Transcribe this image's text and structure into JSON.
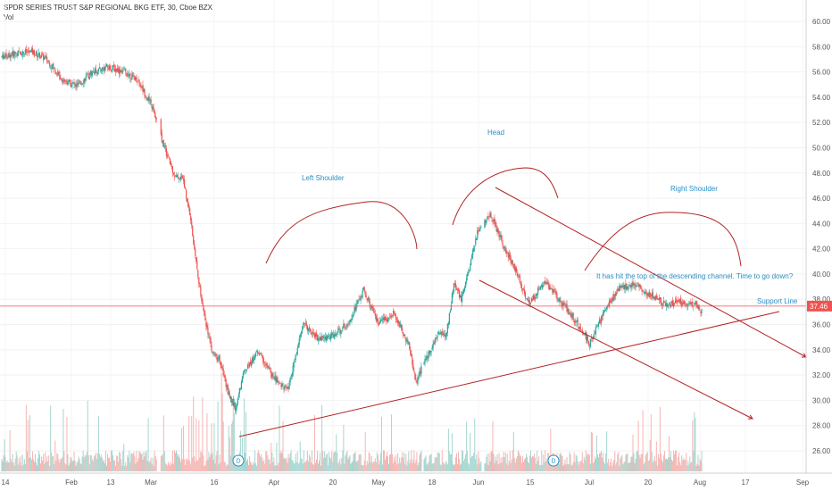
{
  "header": {
    "title": "SPDR SERIES TRUST S&P REGIONAL BKG ETF, 30, Cboe BZX",
    "vol_label": "Vol"
  },
  "colors": {
    "up": "#26a69a",
    "down": "#ef5350",
    "drawing": "#b22222",
    "annotation": "#2a8fc4",
    "price_line": "#ef5350",
    "volume_up": "#a5d6d0",
    "volume_down": "#f5b5b3"
  },
  "chart_data": {
    "type": "candlestick",
    "y_axis": {
      "ticks": [
        "60.00",
        "58.00",
        "56.00",
        "54.00",
        "52.00",
        "50.00",
        "48.00",
        "46.00",
        "44.00",
        "42.00",
        "40.00",
        "38.00",
        "36.00",
        "34.00",
        "32.00",
        "30.00",
        "28.00",
        "26.00"
      ],
      "range": [
        25,
        61
      ]
    },
    "x_axis": {
      "ticks": [
        "14",
        "Feb",
        "13",
        "Mar",
        "16",
        "Apr",
        "20",
        "May",
        "18",
        "Jun",
        "15",
        "Jul",
        "20",
        "Aug",
        "17",
        "Sep"
      ]
    },
    "price_path": [
      [
        0,
        57.2
      ],
      [
        2,
        57.5
      ],
      [
        4,
        57.6
      ],
      [
        6,
        57.0
      ],
      [
        8,
        55.4
      ],
      [
        10,
        54.9
      ],
      [
        12,
        56.0
      ],
      [
        14,
        56.4
      ],
      [
        16,
        56.1
      ],
      [
        18,
        55.4
      ],
      [
        20,
        53.2
      ],
      [
        21,
        51.1
      ],
      [
        22,
        49.3
      ],
      [
        23,
        47.7
      ],
      [
        24,
        47.6
      ],
      [
        25,
        44.6
      ],
      [
        26,
        39.9
      ],
      [
        27,
        36.4
      ],
      [
        28,
        33.6
      ],
      [
        29,
        33.2
      ],
      [
        30,
        30.6
      ],
      [
        31,
        29.4
      ],
      [
        32,
        32.0
      ],
      [
        34,
        33.9
      ],
      [
        36,
        31.8
      ],
      [
        38,
        30.8
      ],
      [
        40,
        36.1
      ],
      [
        42,
        34.9
      ],
      [
        44,
        35.1
      ],
      [
        46,
        36.2
      ],
      [
        48,
        38.7
      ],
      [
        50,
        36.0
      ],
      [
        52,
        36.9
      ],
      [
        54,
        34.4
      ],
      [
        55,
        31.4
      ],
      [
        56,
        33.0
      ],
      [
        58,
        35.3
      ],
      [
        59,
        35.2
      ],
      [
        60,
        39.2
      ],
      [
        61,
        37.9
      ],
      [
        62,
        40.3
      ],
      [
        63,
        43.1
      ],
      [
        64,
        44.1
      ],
      [
        65,
        44.7
      ],
      [
        66,
        43.0
      ],
      [
        68,
        40.5
      ],
      [
        70,
        37.6
      ],
      [
        72,
        39.5
      ],
      [
        74,
        38.0
      ],
      [
        76,
        36.4
      ],
      [
        78,
        34.5
      ],
      [
        80,
        37.2
      ],
      [
        82,
        38.9
      ],
      [
        84,
        39.2
      ],
      [
        86,
        38.4
      ],
      [
        88,
        37.6
      ],
      [
        90,
        37.8
      ],
      [
        92,
        37.6
      ],
      [
        93,
        37.0
      ]
    ],
    "last_price": "37.46",
    "dividend_markers": [
      "D",
      "D"
    ],
    "annotations": {
      "left_shoulder": "Left Shoulder",
      "head": "Head",
      "right_shoulder": "Right Shoulder",
      "note": "It has hit the top of the descending channel. Time to go down?",
      "support": "Support Line"
    }
  }
}
